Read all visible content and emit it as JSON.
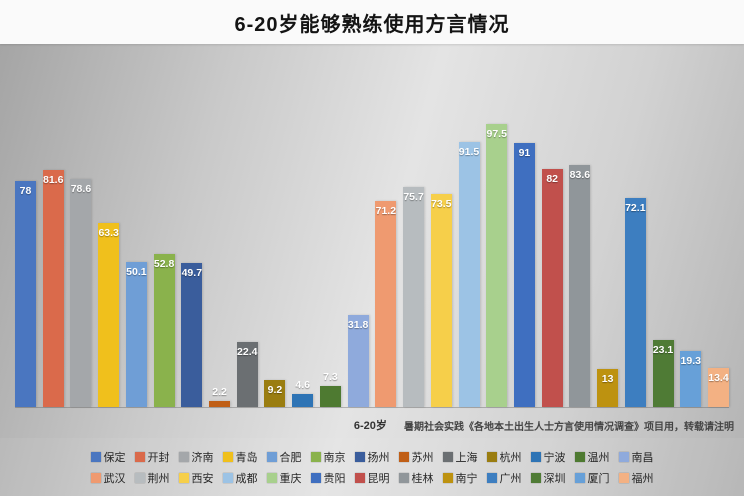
{
  "chart_data": {
    "type": "bar",
    "title": "6-20岁能够熟练使用方言情况",
    "xlabel": "6-20岁",
    "ylabel": "",
    "ylim": [
      0,
      100
    ],
    "grid": false,
    "legend_position": "bottom",
    "note": "暑期社会实践《各地本土出生人士方言使用情况调查》项目用，转载请注明",
    "categories": [
      "保定",
      "开封",
      "济南",
      "青岛",
      "合肥",
      "南京",
      "扬州",
      "苏州",
      "上海",
      "杭州",
      "宁波",
      "温州",
      "南昌",
      "武汉",
      "荆州",
      "西安",
      "成都",
      "重庆",
      "贵阳",
      "昆明",
      "桂林",
      "南宁",
      "广州",
      "深圳",
      "厦门",
      "福州"
    ],
    "values": [
      78,
      81.6,
      78.6,
      63.3,
      50.1,
      52.8,
      49.7,
      2.2,
      22.4,
      9.2,
      4.6,
      7.3,
      31.8,
      71.2,
      75.7,
      73.5,
      91.5,
      97.5,
      91,
      82,
      83.6,
      13,
      72.1,
      23.1,
      19.3,
      13.4
    ],
    "colors": [
      "#4a76c0",
      "#da6a4b",
      "#a4a7aa",
      "#f0c01c",
      "#6f9ed6",
      "#8ab24c",
      "#3a5d9c",
      "#c05f17",
      "#6b6f72",
      "#9a7d10",
      "#2e74b5",
      "#4e7a31",
      "#8faadc",
      "#ef9a70",
      "#b7bcbf",
      "#f6cf4a",
      "#9cc3e5",
      "#a8d08d",
      "#3f6fc0",
      "#c1504c",
      "#90969a",
      "#bd9210",
      "#3d7ec0",
      "#4f7b35",
      "#67a0d8",
      "#f3b183"
    ],
    "legend_rows": [
      13,
      13
    ]
  }
}
